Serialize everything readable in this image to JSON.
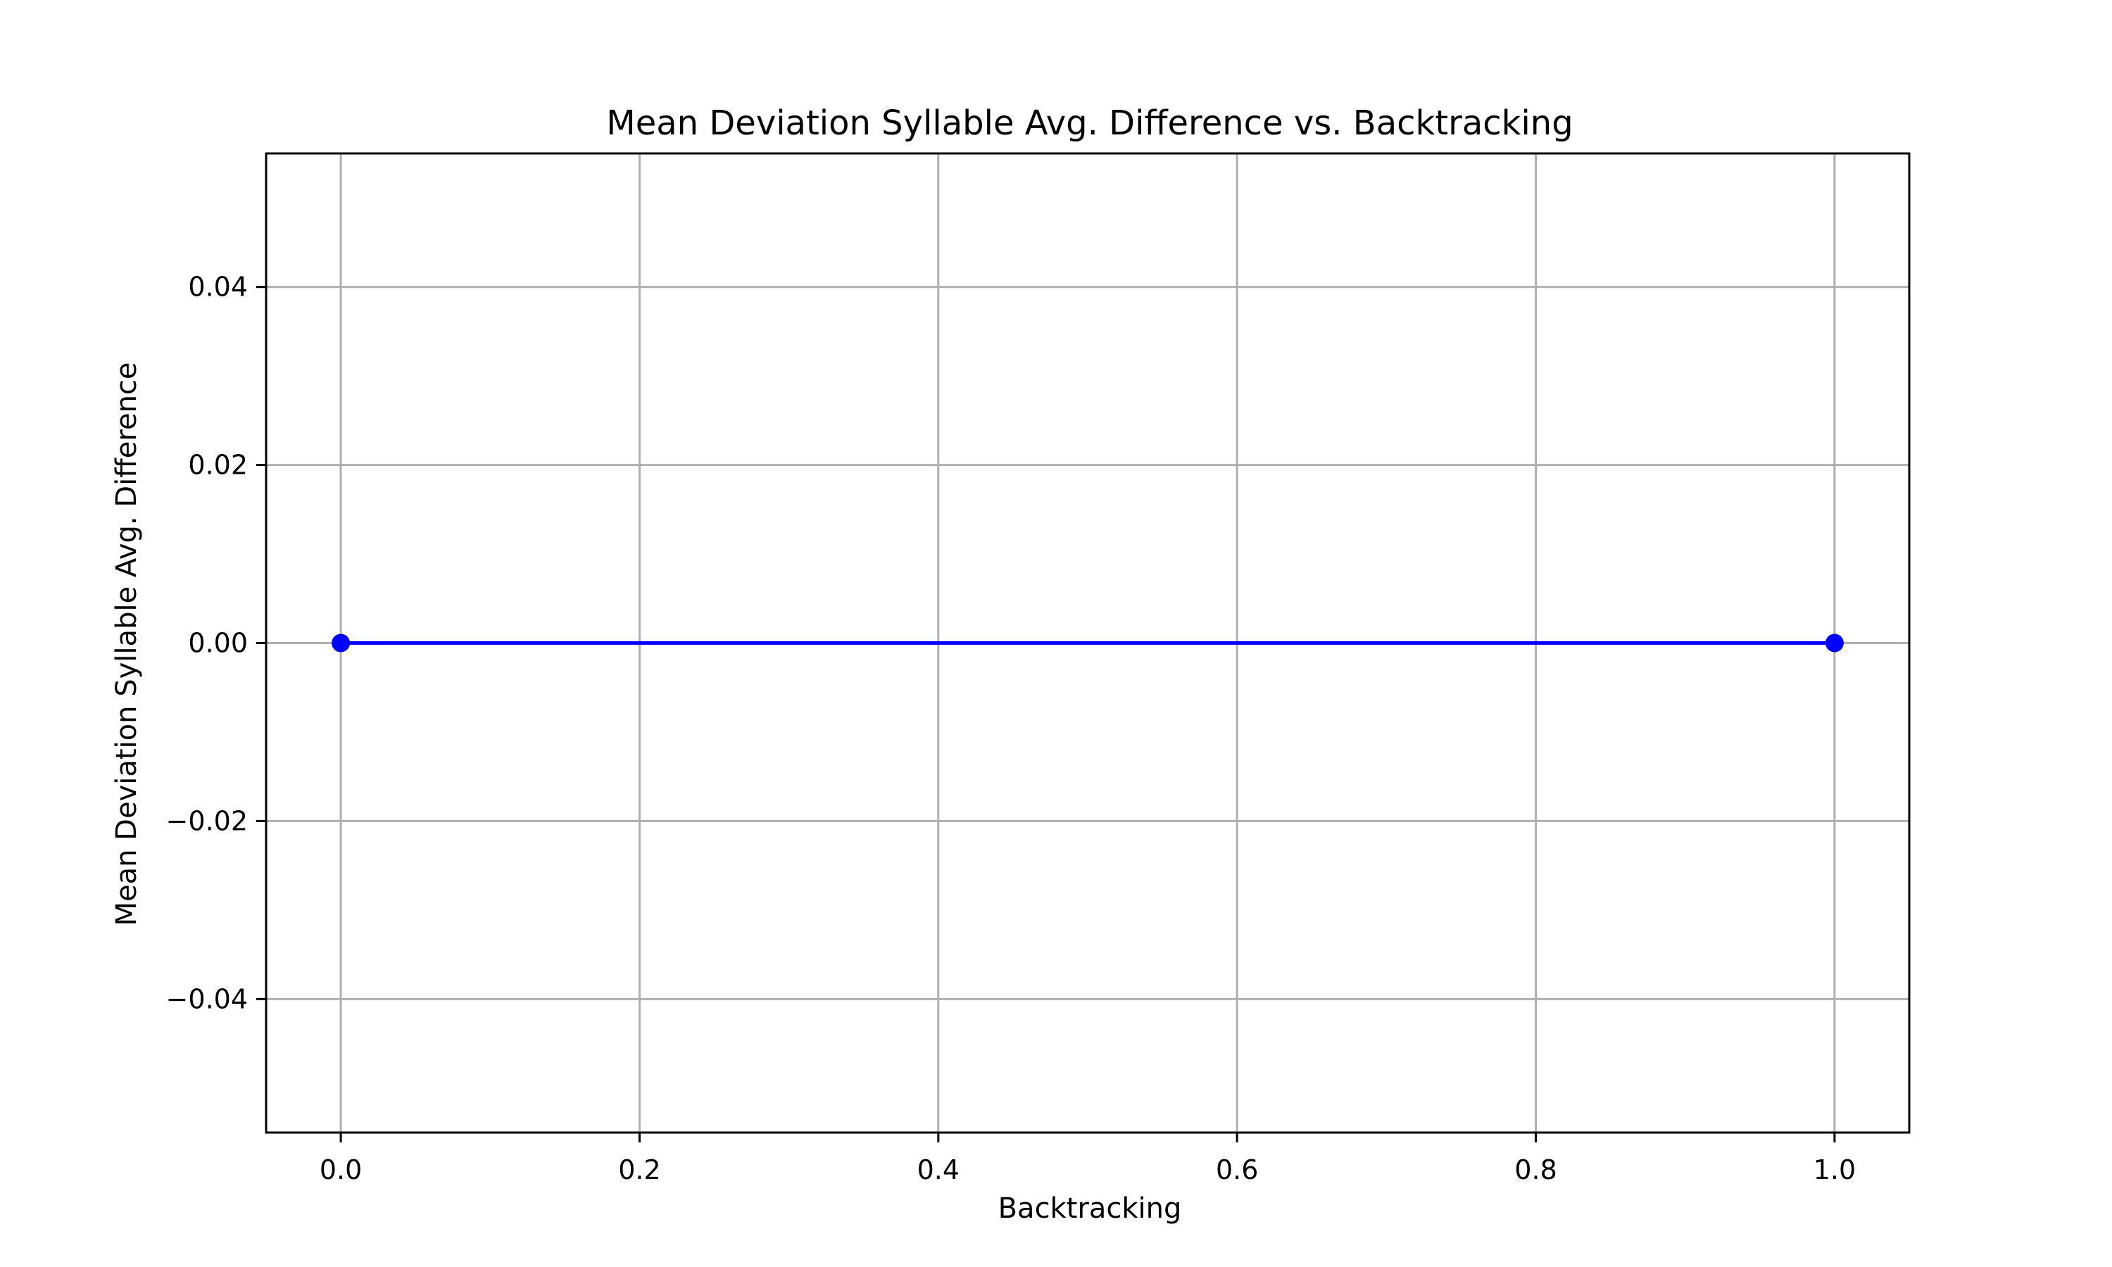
{
  "chart_data": {
    "type": "line",
    "title": "Mean Deviation Syllable Avg. Difference vs. Backtracking",
    "xlabel": "Backtracking",
    "ylabel": "Mean Deviation Syllable Avg. Difference",
    "xlim": [
      -0.05,
      1.05
    ],
    "ylim": [
      -0.055,
      0.055
    ],
    "x_ticks": [
      0.0,
      0.2,
      0.4,
      0.6,
      0.8,
      1.0
    ],
    "x_tick_labels": [
      "0.0",
      "0.2",
      "0.4",
      "0.6",
      "0.8",
      "1.0"
    ],
    "y_ticks": [
      -0.04,
      -0.02,
      0.0,
      0.02,
      0.04
    ],
    "y_tick_labels": [
      "−0.04",
      "−0.02",
      "0.00",
      "0.02",
      "0.04"
    ],
    "grid": true,
    "legend": null,
    "series": [
      {
        "x": [
          0.0,
          1.0
        ],
        "y": [
          0.0,
          0.0
        ],
        "color": "#0000ff",
        "marker": "circle"
      }
    ]
  }
}
